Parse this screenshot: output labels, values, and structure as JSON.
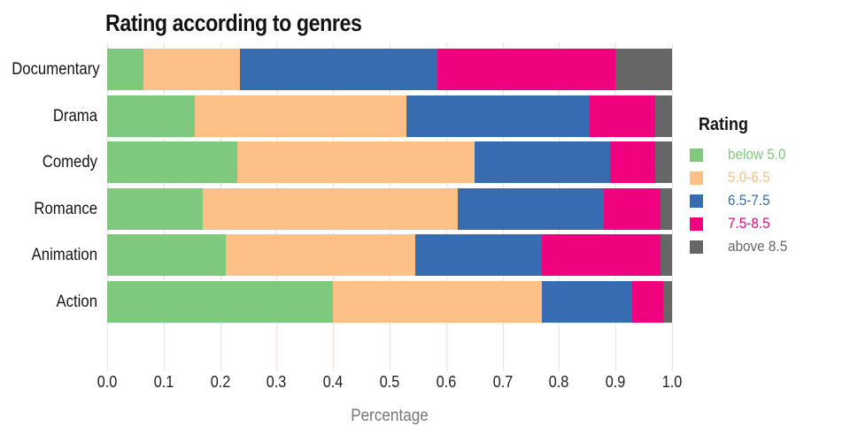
{
  "chart_data": {
    "type": "bar",
    "orientation": "horizontal-stacked",
    "title": "Rating according to genres",
    "xlabel": "Percentage",
    "xlim": [
      0.0,
      1.0
    ],
    "x_ticks": [
      "0.0",
      "0.1",
      "0.2",
      "0.3",
      "0.4",
      "0.5",
      "0.6",
      "0.7",
      "0.8",
      "0.9",
      "1.0"
    ],
    "grid": true,
    "gridline_color": "#f6dedb",
    "categories": [
      "Documentary",
      "Drama",
      "Comedy",
      "Romance",
      "Animation",
      "Action"
    ],
    "legend_title": "Rating",
    "legend_position": "right",
    "series": [
      {
        "name": "below 5.0",
        "color": "#7fc97f",
        "values": [
          0.065,
          0.155,
          0.23,
          0.17,
          0.21,
          0.4
        ]
      },
      {
        "name": "5.0-6.5",
        "color": "#fdc086",
        "values": [
          0.17,
          0.375,
          0.42,
          0.45,
          0.335,
          0.37
        ]
      },
      {
        "name": "6.5-7.5",
        "color": "#386cb0",
        "values": [
          0.35,
          0.325,
          0.24,
          0.26,
          0.225,
          0.16
        ]
      },
      {
        "name": "7.5-8.5",
        "color": "#f0027f",
        "values": [
          0.315,
          0.115,
          0.08,
          0.1,
          0.21,
          0.055
        ]
      },
      {
        "name": "above 8.5",
        "color": "#666666",
        "values": [
          0.1,
          0.03,
          0.03,
          0.02,
          0.02,
          0.015
        ]
      }
    ]
  },
  "text_colors": {
    "title": "#141414",
    "axis_label": "#767676",
    "tick_label": "#1f1f1f"
  }
}
